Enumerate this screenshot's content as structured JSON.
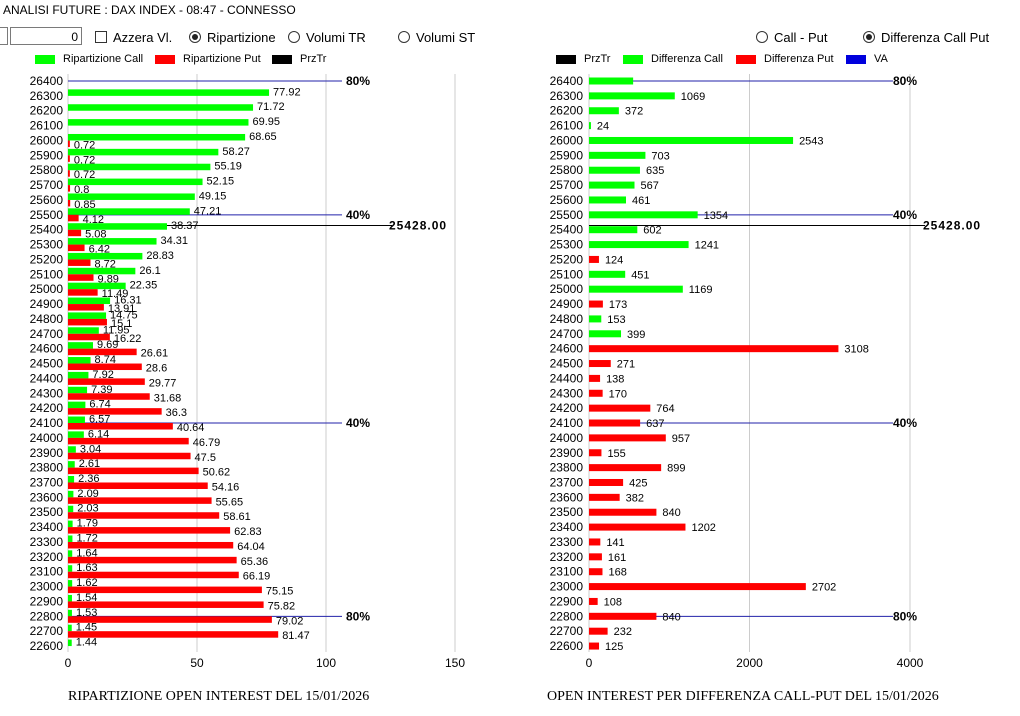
{
  "window": {
    "title": "ANALISI FUTURE : DAX INDEX - 08:47 - CONNESSO"
  },
  "toolbar": {
    "number_value": "0",
    "azzera_label": "Azzera Vl.",
    "ripartizione_label": "Ripartizione",
    "volumi_tr_label": "Volumi TR",
    "volumi_st_label": "Volumi ST",
    "call_put_label": "Call - Put",
    "diff_call_put_label": "Differenza Call Put",
    "selected_left": "Ripartizione",
    "selected_right": "Differenza Call Put"
  },
  "colors": {
    "green": "#00ff00",
    "red": "#ff0000",
    "black": "#000000",
    "blue": "#0000dd",
    "axis_line": "#cccccc",
    "ref_line": "#2222aa"
  },
  "left_chart": {
    "legend": [
      {
        "label": "Ripartizione Call",
        "color": "#00ff00"
      },
      {
        "label": "Ripartizione Put",
        "color": "#ff0000"
      },
      {
        "label": "PrzTr",
        "color": "#000000"
      }
    ],
    "caption": "RIPARTIZIONE OPEN INTEREST DEL 15/01/2026",
    "ref_labels": [
      "80%",
      "40%",
      "40%",
      "80%"
    ],
    "price_label": "25428.00"
  },
  "right_chart": {
    "legend": [
      {
        "label": "PrzTr",
        "color": "#000000"
      },
      {
        "label": "Differenza Call",
        "color": "#00ff00"
      },
      {
        "label": "Differenza Put",
        "color": "#ff0000"
      },
      {
        "label": "VA",
        "color": "#0000dd"
      }
    ],
    "caption": "OPEN INTEREST PER DIFFERENZA CALL-PUT  DEL 15/01/2026",
    "ref_labels": [
      "80%",
      "40%",
      "40%",
      "80%"
    ],
    "price_label": "25428.00"
  },
  "chart_data": [
    {
      "type": "bar",
      "title": "RIPARTIZIONE OPEN INTEREST DEL 15/01/2026",
      "orientation": "horizontal",
      "xlim": [
        0,
        150
      ],
      "xticks": [
        "0",
        "50",
        "100",
        "150"
      ],
      "categories": [
        "26400",
        "26300",
        "26200",
        "26100",
        "26000",
        "25900",
        "25800",
        "25700",
        "25600",
        "25500",
        "25400",
        "25300",
        "25200",
        "25100",
        "25000",
        "24900",
        "24800",
        "24700",
        "24600",
        "24500",
        "24400",
        "24300",
        "24200",
        "24100",
        "24000",
        "23900",
        "23800",
        "23700",
        "23600",
        "23500",
        "23400",
        "23300",
        "23200",
        "23100",
        "23000",
        "22900",
        "22800",
        "22700",
        "22600"
      ],
      "series": [
        {
          "name": "Ripartizione Call",
          "color": "#00ff00",
          "values": [
            null,
            77.92,
            71.72,
            69.95,
            68.65,
            58.27,
            55.19,
            52.15,
            49.15,
            47.21,
            38.37,
            34.31,
            28.83,
            26.1,
            22.35,
            16.31,
            14.75,
            11.95,
            9.69,
            8.74,
            7.92,
            7.39,
            6.74,
            6.57,
            6.14,
            3.04,
            2.61,
            2.36,
            2.09,
            2.03,
            1.79,
            1.72,
            1.64,
            1.63,
            1.62,
            1.54,
            1.53,
            1.45,
            1.44
          ]
        },
        {
          "name": "Ripartizione Put",
          "color": "#ff0000",
          "values": [
            null,
            null,
            null,
            null,
            0.72,
            0.72,
            0.72,
            0.8,
            0.85,
            4.12,
            5.08,
            6.42,
            8.72,
            9.89,
            11.49,
            13.91,
            15.1,
            16.22,
            26.61,
            28.6,
            29.77,
            31.68,
            36.3,
            40.64,
            46.79,
            47.5,
            50.62,
            54.16,
            55.65,
            58.61,
            62.83,
            64.04,
            65.36,
            66.19,
            75.15,
            75.82,
            79.02,
            81.47,
            null
          ]
        }
      ],
      "reference_lines": [
        {
          "category": "26400",
          "label": "80%"
        },
        {
          "category": "25500",
          "label": "40%"
        },
        {
          "category": "24100",
          "label": "40%"
        },
        {
          "category": "22800",
          "label": "80%"
        }
      ],
      "price_line": {
        "value": 25428.0,
        "label": "25428.00"
      }
    },
    {
      "type": "bar",
      "title": "OPEN INTEREST PER DIFFERENZA CALL-PUT  DEL 15/01/2026",
      "orientation": "horizontal",
      "xlim": [
        0,
        4000
      ],
      "xticks": [
        "0",
        "2000",
        "4000"
      ],
      "categories": [
        "26400",
        "26300",
        "26200",
        "26100",
        "26000",
        "25900",
        "25800",
        "25700",
        "25600",
        "25500",
        "25400",
        "25300",
        "25200",
        "25100",
        "25000",
        "24900",
        "24800",
        "24700",
        "24600",
        "24500",
        "24400",
        "24300",
        "24200",
        "24100",
        "24000",
        "23900",
        "23800",
        "23700",
        "23600",
        "23500",
        "23400",
        "23300",
        "23200",
        "23100",
        "23000",
        "22900",
        "22800",
        "22700",
        "22600"
      ],
      "bars": [
        {
          "v": 550,
          "s": "call",
          "label": ""
        },
        {
          "v": 1069,
          "s": "call",
          "label": "1069"
        },
        {
          "v": 372,
          "s": "call",
          "label": "372"
        },
        {
          "v": 24,
          "s": "call",
          "label": "24"
        },
        {
          "v": 2543,
          "s": "call",
          "label": "2543"
        },
        {
          "v": 703,
          "s": "call",
          "label": "703"
        },
        {
          "v": 635,
          "s": "call",
          "label": "635"
        },
        {
          "v": 567,
          "s": "call",
          "label": "567"
        },
        {
          "v": 461,
          "s": "call",
          "label": "461"
        },
        {
          "v": 1354,
          "s": "call",
          "label": "1354"
        },
        {
          "v": 602,
          "s": "call",
          "label": "602"
        },
        {
          "v": 1241,
          "s": "call",
          "label": "1241"
        },
        {
          "v": 124,
          "s": "put",
          "label": "124"
        },
        {
          "v": 451,
          "s": "call",
          "label": "451"
        },
        {
          "v": 1169,
          "s": "call",
          "label": "1169"
        },
        {
          "v": 173,
          "s": "put",
          "label": "173"
        },
        {
          "v": 153,
          "s": "call",
          "label": "153"
        },
        {
          "v": 399,
          "s": "call",
          "label": "399"
        },
        {
          "v": 3108,
          "s": "put",
          "label": "3108"
        },
        {
          "v": 271,
          "s": "put",
          "label": "271"
        },
        {
          "v": 138,
          "s": "put",
          "label": "138"
        },
        {
          "v": 170,
          "s": "put",
          "label": "170"
        },
        {
          "v": 764,
          "s": "put",
          "label": "764"
        },
        {
          "v": 637,
          "s": "put",
          "label": "637"
        },
        {
          "v": 957,
          "s": "put",
          "label": "957"
        },
        {
          "v": 155,
          "s": "put",
          "label": "155"
        },
        {
          "v": 899,
          "s": "put",
          "label": "899"
        },
        {
          "v": 425,
          "s": "put",
          "label": "425"
        },
        {
          "v": 382,
          "s": "put",
          "label": "382"
        },
        {
          "v": 840,
          "s": "put",
          "label": "840"
        },
        {
          "v": 1202,
          "s": "put",
          "label": "1202"
        },
        {
          "v": 141,
          "s": "put",
          "label": "141"
        },
        {
          "v": 161,
          "s": "put",
          "label": "161"
        },
        {
          "v": 168,
          "s": "put",
          "label": "168"
        },
        {
          "v": 2702,
          "s": "put",
          "label": "2702"
        },
        {
          "v": 108,
          "s": "put",
          "label": "108"
        },
        {
          "v": 840,
          "s": "put",
          "label": "840"
        },
        {
          "v": 232,
          "s": "put",
          "label": "232"
        },
        {
          "v": 125,
          "s": "put",
          "label": "125"
        }
      ],
      "reference_lines": [
        {
          "category": "26400",
          "label": "80%"
        },
        {
          "category": "25500",
          "label": "40%"
        },
        {
          "category": "24100",
          "label": "40%"
        },
        {
          "category": "22800",
          "label": "80%"
        }
      ],
      "price_line": {
        "value": 25428.0,
        "label": "25428.00"
      }
    }
  ]
}
